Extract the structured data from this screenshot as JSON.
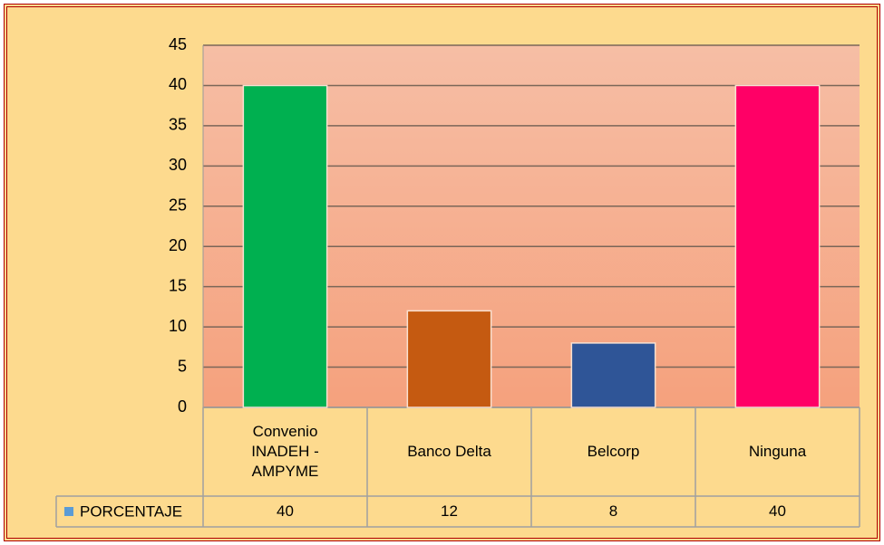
{
  "chart_data": {
    "type": "bar",
    "categories": [
      "Convenio INADEH - AMPYME",
      "Banco Delta",
      "Belcorp",
      "Ninguna"
    ],
    "series": [
      {
        "name": "PORCENTAJE",
        "color": "#5B9BD5",
        "colors": [
          "#00B050",
          "#C55A11",
          "#2F5597",
          "#FF0066"
        ],
        "values": [
          40,
          12,
          8,
          40
        ]
      }
    ],
    "ylim": [
      0,
      45
    ],
    "yticks": [
      0,
      5,
      10,
      15,
      20,
      25,
      30,
      35,
      40,
      45
    ],
    "grid": true,
    "legend": "table"
  }
}
